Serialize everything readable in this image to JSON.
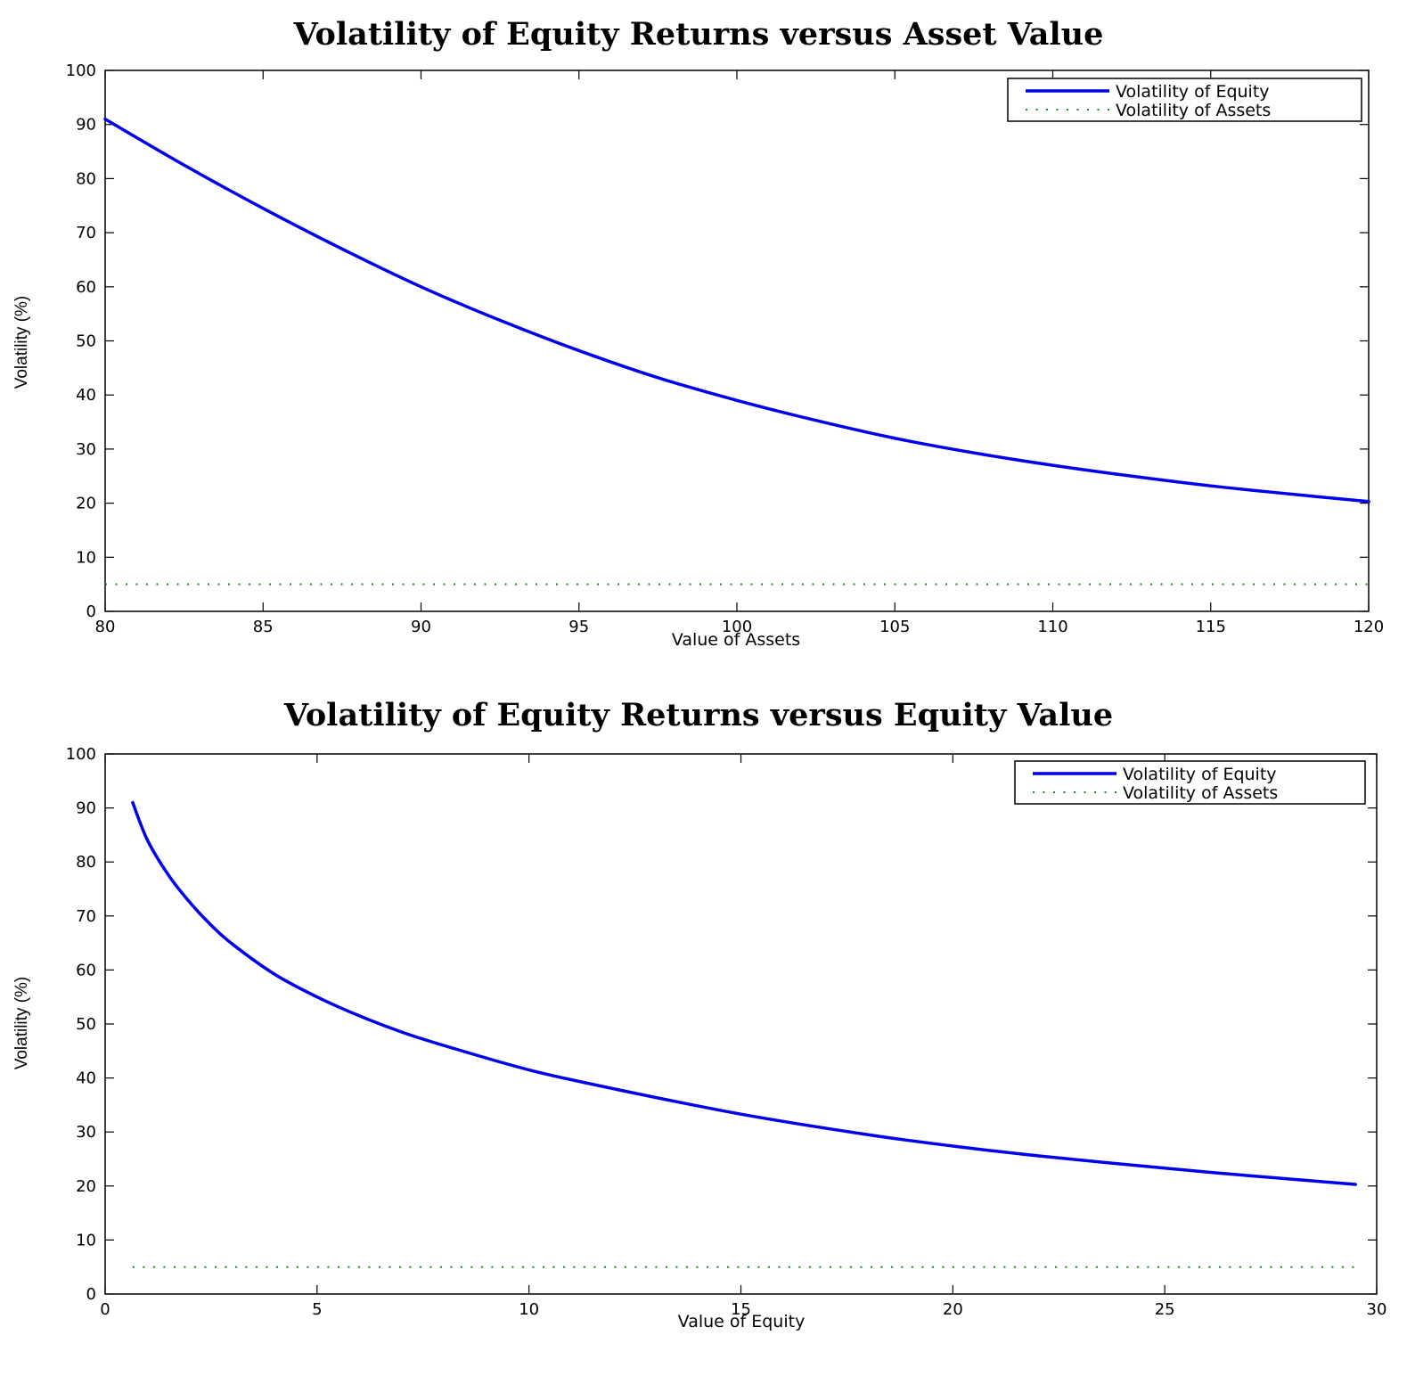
{
  "chart_data": [
    {
      "type": "line",
      "title": "Volatility of Equity Returns versus Asset Value",
      "xlabel": "Value of Assets",
      "ylabel": "Volatility (%)",
      "xlim": [
        80,
        120
      ],
      "ylim": [
        0,
        100
      ],
      "xticks": [
        "80",
        "85",
        "90",
        "95",
        "100",
        "105",
        "110",
        "115",
        "120"
      ],
      "yticks": [
        "0",
        "10",
        "20",
        "30",
        "40",
        "50",
        "60",
        "70",
        "80",
        "90",
        "100"
      ],
      "grid": false,
      "legend_position": "top-right",
      "series": [
        {
          "name": "Volatility of Equity",
          "color": "#0000ee",
          "style": "solid",
          "x": [
            80,
            82.5,
            85,
            87.5,
            90,
            92.5,
            95,
            97.5,
            100,
            102.5,
            105,
            107.5,
            110,
            112.5,
            115,
            117.5,
            120
          ],
          "y": [
            91,
            82.5,
            74.5,
            67,
            60,
            53.8,
            48.2,
            43.2,
            39,
            35.3,
            32,
            29.3,
            27,
            25,
            23.2,
            21.7,
            20.3
          ]
        },
        {
          "name": "Volatility of Assets",
          "color": "#1a8a1a",
          "style": "dotted",
          "x": [
            80,
            120
          ],
          "y": [
            5,
            5
          ]
        }
      ]
    },
    {
      "type": "line",
      "title": "Volatility of Equity Returns versus Equity Value",
      "xlabel": "Value of Equity",
      "ylabel": "Volatility (%)",
      "xlim": [
        0,
        30
      ],
      "ylim": [
        0,
        100
      ],
      "xticks": [
        "0",
        "5",
        "10",
        "15",
        "20",
        "25",
        "30"
      ],
      "yticks": [
        "0",
        "10",
        "20",
        "30",
        "40",
        "50",
        "60",
        "70",
        "80",
        "90",
        "100"
      ],
      "grid": false,
      "legend_position": "top-right",
      "series": [
        {
          "name": "Volatility of Equity",
          "color": "#0000ee",
          "style": "solid",
          "x": [
            0.65,
            1,
            1.5,
            2,
            2.5,
            3,
            4,
            5,
            6,
            7,
            8,
            10,
            12,
            15,
            18,
            20,
            22,
            25,
            27,
            29.5
          ],
          "y": [
            91,
            84,
            77.5,
            72.5,
            68.3,
            64.8,
            59.2,
            55,
            51.5,
            48.5,
            46,
            41.5,
            38,
            33.3,
            29.5,
            27.4,
            25.6,
            23.3,
            21.9,
            20.3
          ]
        },
        {
          "name": "Volatility of Assets",
          "color": "#1a8a1a",
          "style": "dotted",
          "x": [
            0.65,
            29.5
          ],
          "y": [
            5,
            5
          ]
        }
      ]
    }
  ]
}
